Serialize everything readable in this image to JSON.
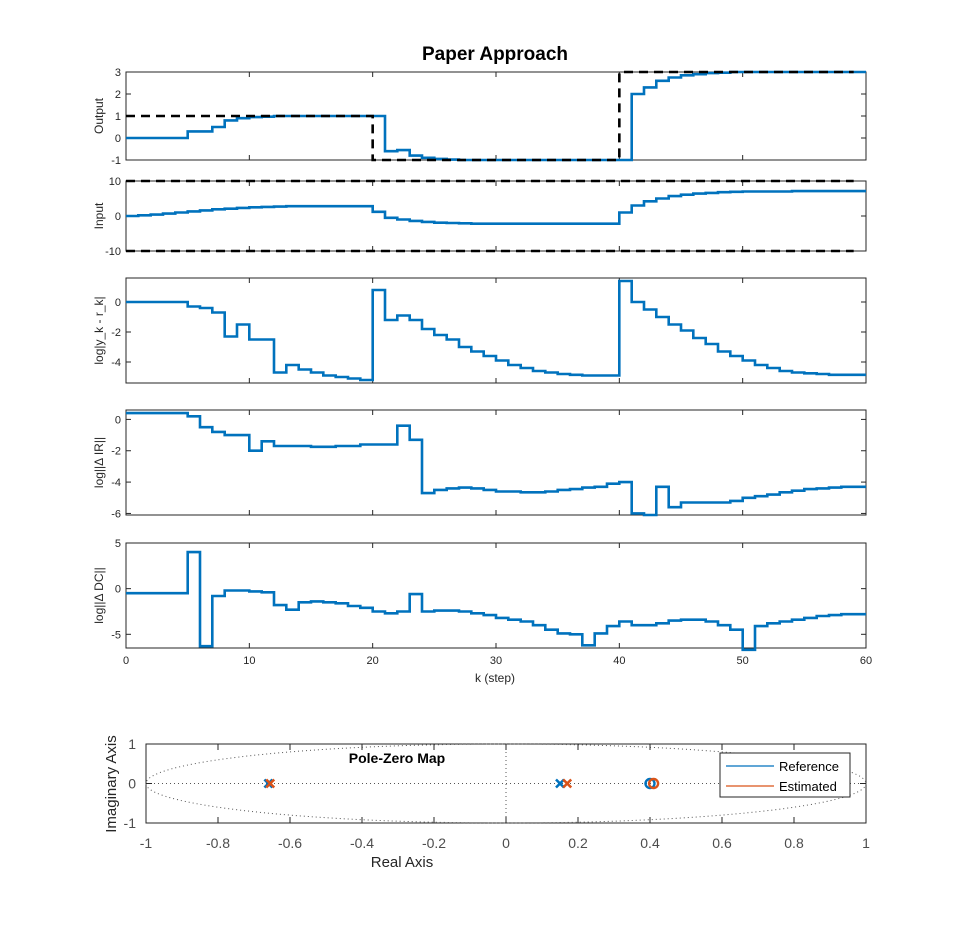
{
  "figure": {
    "title": "Paper Approach",
    "x_label": "k (step)",
    "x_ticks": [
      "0",
      "10",
      "20",
      "30",
      "40",
      "50",
      "60"
    ]
  },
  "colors": {
    "series": "#0072bd",
    "reference": "#000000",
    "estimated": "#d95319",
    "axes": "#262626"
  },
  "chart_data": [
    {
      "type": "line",
      "name": "output",
      "ylabel": "Output",
      "xlim": [
        0,
        60
      ],
      "ylim": [
        -1,
        3
      ],
      "y_ticks": [
        "-1",
        "0",
        "1",
        "2",
        "3"
      ],
      "series": [
        {
          "style": "stairs",
          "x": [
            0,
            1,
            2,
            3,
            4,
            5,
            6,
            7,
            8,
            9,
            10,
            11,
            12,
            13,
            14,
            15,
            16,
            17,
            18,
            19,
            20,
            21,
            22,
            23,
            24,
            25,
            26,
            27,
            28,
            29,
            30,
            31,
            32,
            33,
            34,
            35,
            36,
            37,
            38,
            39,
            40,
            41,
            42,
            43,
            44,
            45,
            46,
            47,
            48,
            49,
            50,
            51,
            52,
            53,
            54,
            55,
            56,
            57,
            58,
            59
          ],
          "values": [
            0,
            0,
            0,
            0,
            0,
            0.3,
            0.3,
            0.5,
            0.8,
            0.9,
            0.95,
            0.97,
            1,
            1,
            1,
            1,
            1,
            1,
            1,
            1,
            1,
            -0.6,
            -0.55,
            -0.8,
            -0.9,
            -0.95,
            -0.98,
            -1,
            -1,
            -1,
            -1,
            -1,
            -1,
            -1,
            -1,
            -1,
            -1,
            -1,
            -1,
            -1,
            -1,
            2.0,
            2.3,
            2.6,
            2.75,
            2.85,
            2.9,
            2.95,
            2.97,
            3,
            3,
            3,
            3,
            3,
            3,
            3,
            3,
            3,
            3,
            3
          ]
        },
        {
          "style": "dashed-reference",
          "x": [
            0,
            20,
            40,
            59
          ],
          "values": [
            1,
            -1,
            3,
            3
          ]
        }
      ]
    },
    {
      "type": "line",
      "name": "input",
      "ylabel": "Input",
      "xlim": [
        0,
        60
      ],
      "ylim": [
        -10,
        10
      ],
      "y_ticks": [
        "-10",
        "0",
        "10"
      ],
      "series": [
        {
          "style": "stairs",
          "x": [
            0,
            1,
            2,
            3,
            4,
            5,
            6,
            7,
            8,
            9,
            10,
            11,
            12,
            13,
            14,
            15,
            16,
            17,
            18,
            19,
            20,
            21,
            22,
            23,
            24,
            25,
            26,
            27,
            28,
            29,
            30,
            31,
            32,
            33,
            34,
            35,
            36,
            37,
            38,
            39,
            40,
            41,
            42,
            43,
            44,
            45,
            46,
            47,
            48,
            49,
            50,
            51,
            52,
            53,
            54,
            55,
            56,
            57,
            58,
            59
          ],
          "values": [
            0,
            0.2,
            0.4,
            0.7,
            1.0,
            1.3,
            1.6,
            1.9,
            2.1,
            2.3,
            2.5,
            2.6,
            2.7,
            2.8,
            2.8,
            2.8,
            2.8,
            2.8,
            2.8,
            2.8,
            1.2,
            -0.5,
            -1.0,
            -1.4,
            -1.7,
            -1.9,
            -2.0,
            -2.1,
            -2.2,
            -2.2,
            -2.2,
            -2.2,
            -2.2,
            -2.2,
            -2.2,
            -2.2,
            -2.2,
            -2.2,
            -2.2,
            -2.2,
            1.0,
            3.0,
            4.2,
            5.0,
            5.7,
            6.1,
            6.4,
            6.6,
            6.8,
            6.9,
            7.0,
            7.0,
            7.0,
            7.0,
            7.1,
            7.1,
            7.1,
            7.1,
            7.1,
            7.1
          ]
        },
        {
          "style": "dashed-limit",
          "x": [
            0,
            59
          ],
          "values": [
            10,
            10
          ]
        },
        {
          "style": "dashed-limit",
          "x": [
            0,
            59
          ],
          "values": [
            -10,
            -10
          ]
        }
      ]
    },
    {
      "type": "line",
      "name": "log-tracking-error",
      "ylabel": "log|y_k - r_k|",
      "xlim": [
        0,
        60
      ],
      "ylim": [
        -5.4,
        1.6
      ],
      "y_ticks": [
        "-4",
        "-2",
        "0"
      ],
      "series": [
        {
          "style": "stairs",
          "x": [
            0,
            1,
            2,
            3,
            4,
            5,
            6,
            7,
            8,
            9,
            10,
            11,
            12,
            13,
            14,
            15,
            16,
            17,
            18,
            19,
            20,
            21,
            22,
            23,
            24,
            25,
            26,
            27,
            28,
            29,
            30,
            31,
            32,
            33,
            34,
            35,
            36,
            37,
            38,
            39,
            40,
            41,
            42,
            43,
            44,
            45,
            46,
            47,
            48,
            49,
            50,
            51,
            52,
            53,
            54,
            55,
            56,
            57,
            58,
            59
          ],
          "values": [
            0,
            0,
            0,
            0,
            0,
            -0.3,
            -0.4,
            -0.7,
            -2.3,
            -1.5,
            -2.5,
            -2.5,
            -4.7,
            -4.2,
            -4.5,
            -4.7,
            -4.9,
            -5.0,
            -5.1,
            -5.2,
            0.8,
            -1.2,
            -0.9,
            -1.2,
            -1.8,
            -2.2,
            -2.5,
            -3.0,
            -3.3,
            -3.6,
            -3.9,
            -4.2,
            -4.4,
            -4.6,
            -4.7,
            -4.8,
            -4.85,
            -4.9,
            -4.9,
            -4.9,
            1.4,
            0,
            -0.5,
            -1.0,
            -1.5,
            -1.9,
            -2.4,
            -2.8,
            -3.3,
            -3.6,
            -3.9,
            -4.2,
            -4.4,
            -4.6,
            -4.7,
            -4.75,
            -4.8,
            -4.85,
            -4.85,
            -4.85
          ]
        }
      ]
    },
    {
      "type": "line",
      "name": "log-delta-ir",
      "ylabel": "log||Δ IR||",
      "xlim": [
        0,
        60
      ],
      "ylim": [
        -6.1,
        0.6
      ],
      "y_ticks": [
        "-6",
        "-4",
        "-2",
        "0"
      ],
      "series": [
        {
          "style": "stairs",
          "x": [
            0,
            1,
            2,
            3,
            4,
            5,
            6,
            7,
            8,
            9,
            10,
            11,
            12,
            13,
            14,
            15,
            16,
            17,
            18,
            19,
            20,
            21,
            22,
            23,
            24,
            25,
            26,
            27,
            28,
            29,
            30,
            31,
            32,
            33,
            34,
            35,
            36,
            37,
            38,
            39,
            40,
            41,
            42,
            43,
            44,
            45,
            46,
            47,
            48,
            49,
            50,
            51,
            52,
            53,
            54,
            55,
            56,
            57,
            58,
            59
          ],
          "values": [
            0.4,
            0.4,
            0.4,
            0.4,
            0.4,
            0.2,
            -0.5,
            -0.8,
            -1.0,
            -1.0,
            -2.0,
            -1.4,
            -1.7,
            -1.7,
            -1.7,
            -1.75,
            -1.75,
            -1.7,
            -1.7,
            -1.6,
            -1.6,
            -1.6,
            -0.4,
            -1.3,
            -4.7,
            -4.5,
            -4.4,
            -4.35,
            -4.4,
            -4.5,
            -4.6,
            -4.6,
            -4.65,
            -4.65,
            -4.6,
            -4.5,
            -4.45,
            -4.35,
            -4.3,
            -4.1,
            -4.0,
            -6.0,
            -6.1,
            -4.3,
            -5.6,
            -5.3,
            -5.3,
            -5.3,
            -5.3,
            -5.2,
            -5.0,
            -4.9,
            -4.8,
            -4.65,
            -4.55,
            -4.45,
            -4.4,
            -4.35,
            -4.3,
            -4.3
          ]
        }
      ]
    },
    {
      "type": "line",
      "name": "log-delta-dc",
      "ylabel": "log||Δ DC||",
      "xlim": [
        0,
        60
      ],
      "ylim": [
        -6.5,
        5
      ],
      "y_ticks": [
        "-5",
        "0",
        "5"
      ],
      "series": [
        {
          "style": "stairs",
          "x": [
            0,
            1,
            2,
            3,
            4,
            5,
            6,
            7,
            8,
            9,
            10,
            11,
            12,
            13,
            14,
            15,
            16,
            17,
            18,
            19,
            20,
            21,
            22,
            23,
            24,
            25,
            26,
            27,
            28,
            29,
            30,
            31,
            32,
            33,
            34,
            35,
            36,
            37,
            38,
            39,
            40,
            41,
            42,
            43,
            44,
            45,
            46,
            47,
            48,
            49,
            50,
            51,
            52,
            53,
            54,
            55,
            56,
            57,
            58,
            59
          ],
          "values": [
            -0.5,
            -0.5,
            -0.5,
            -0.5,
            -0.5,
            4.0,
            -6.3,
            -0.8,
            -0.2,
            -0.2,
            -0.3,
            -0.4,
            -1.8,
            -2.3,
            -1.5,
            -1.4,
            -1.5,
            -1.6,
            -1.9,
            -2.1,
            -2.5,
            -2.7,
            -2.5,
            -0.6,
            -2.5,
            -2.4,
            -2.4,
            -2.5,
            -2.7,
            -2.9,
            -3.2,
            -3.4,
            -3.6,
            -4.0,
            -4.5,
            -4.9,
            -5.0,
            -6.2,
            -4.9,
            -4.1,
            -3.6,
            -4.0,
            -4.0,
            -3.8,
            -3.5,
            -3.4,
            -3.4,
            -3.6,
            -4.0,
            -4.5,
            -6.7,
            -4.1,
            -3.8,
            -3.6,
            -3.4,
            -3.2,
            -3.0,
            -2.9,
            -2.8,
            -2.8
          ]
        }
      ]
    },
    {
      "type": "scatter",
      "name": "pole-zero-map",
      "title": "Pole-Zero Map",
      "xlabel": "Real Axis",
      "ylabel": "Imaginary Axis",
      "xlim": [
        -1,
        1
      ],
      "ylim": [
        -1,
        1
      ],
      "x_ticks": [
        "-1",
        "-0.8",
        "-0.6",
        "-0.4",
        "-0.2",
        "0",
        "0.2",
        "0.4",
        "0.6",
        "0.8",
        "1"
      ],
      "y_ticks": [
        "-1",
        "0",
        "1"
      ],
      "legend": {
        "position": "top-right",
        "entries": [
          "Reference",
          "Estimated"
        ]
      },
      "series": [
        {
          "name": "Reference",
          "poles": [
            [
              -0.66,
              0
            ],
            [
              0.15,
              0
            ]
          ],
          "zeros": [
            [
              0.4,
              0
            ]
          ]
        },
        {
          "name": "Estimated",
          "poles": [
            [
              -0.655,
              0
            ],
            [
              0.17,
              0
            ]
          ],
          "zeros": [
            [
              0.41,
              0
            ]
          ]
        }
      ]
    }
  ]
}
